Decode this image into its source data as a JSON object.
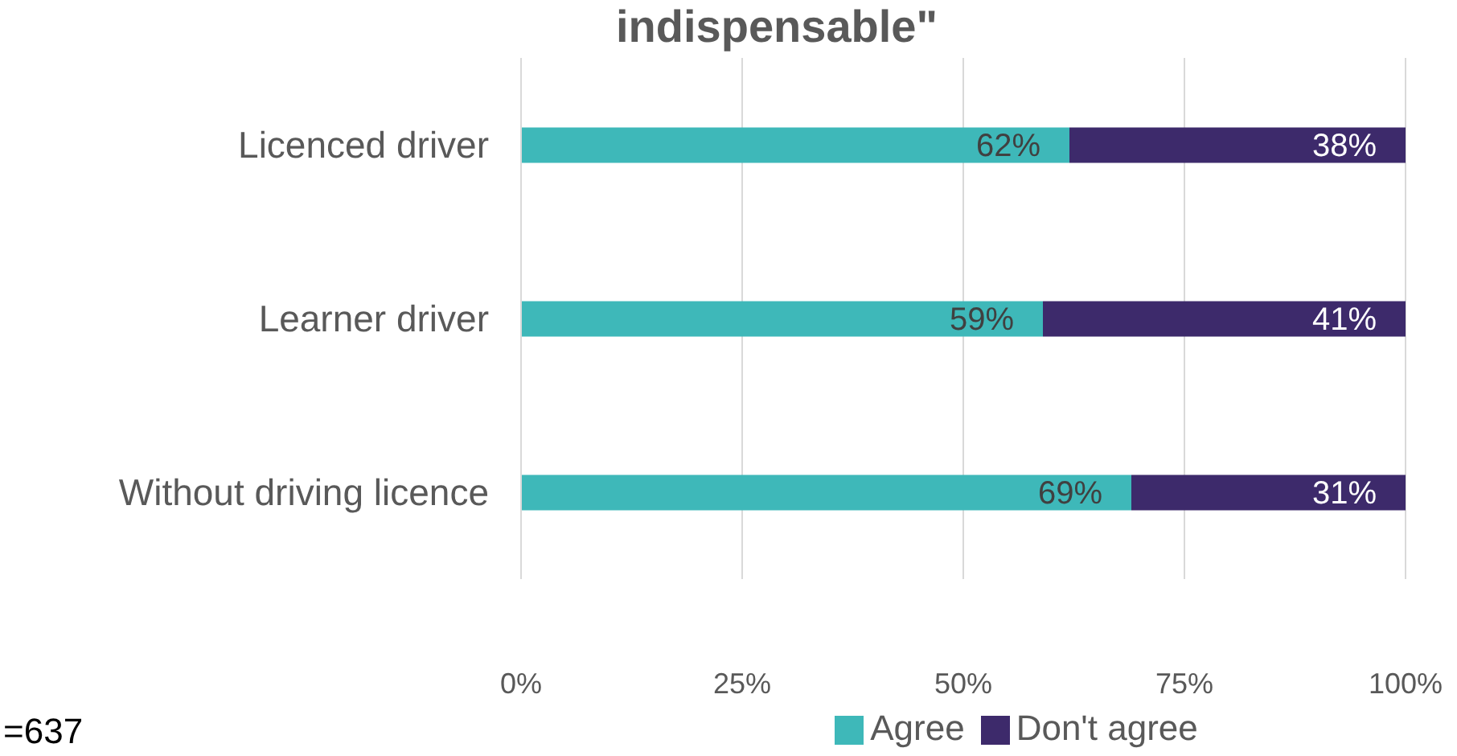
{
  "chart_data": {
    "type": "bar",
    "orientation": "horizontal",
    "stacked": true,
    "title": "indispensable\"",
    "categories": [
      "Licenced driver",
      "Learner driver",
      "Without driving licence"
    ],
    "series": [
      {
        "name": "Agree",
        "color": "#3eb8b9",
        "values": [
          62,
          59,
          69
        ],
        "value_labels": [
          "62%",
          "59%",
          "69%"
        ]
      },
      {
        "name": "Don't agree",
        "color": "#3d2a6b",
        "values": [
          38,
          41,
          31
        ],
        "value_labels": [
          "38%",
          "41%",
          "31%"
        ]
      }
    ],
    "xlim": [
      0,
      100
    ],
    "xticks": [
      {
        "value": 0,
        "label": "0%"
      },
      {
        "value": 25,
        "label": "25%"
      },
      {
        "value": 50,
        "label": "50%"
      },
      {
        "value": 75,
        "label": "75%"
      },
      {
        "value": 100,
        "label": "100%"
      }
    ],
    "grid": "x",
    "legend": "bottom",
    "annotations": [
      "=637"
    ]
  }
}
